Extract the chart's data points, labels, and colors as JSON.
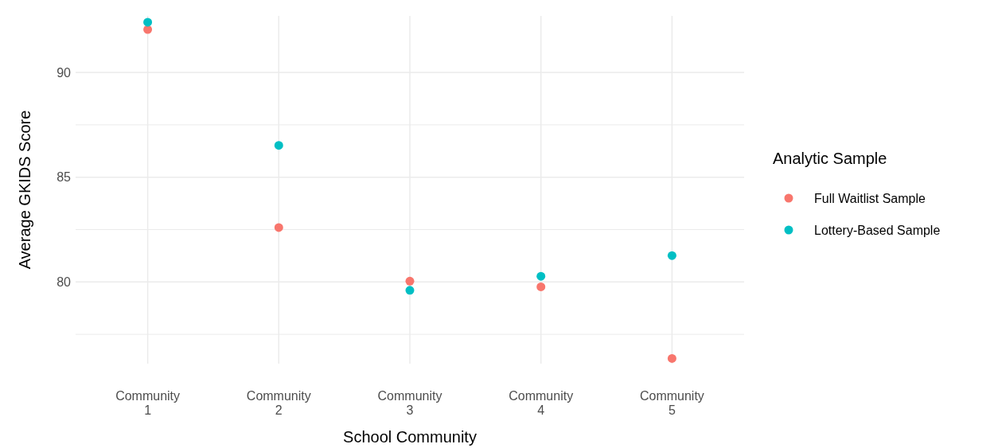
{
  "chart_data": {
    "type": "scatter",
    "xlabel": "School Community",
    "ylabel": "Average GKIDS Score",
    "legend_title": "Analytic Sample",
    "categories": [
      "Community 1",
      "Community 2",
      "Community 3",
      "Community 4",
      "Community 5"
    ],
    "series": [
      {
        "name": "Full Waitlist Sample",
        "color": "#f8766d",
        "values": [
          92.05,
          82.6,
          80.04,
          79.77,
          76.35
        ]
      },
      {
        "name": "Lottery-Based Sample",
        "color": "#00bfc4",
        "values": [
          92.4,
          86.52,
          79.6,
          80.27,
          81.26
        ]
      }
    ],
    "ylim": [
      76.1,
      92.7
    ],
    "yticks": [
      {
        "value": 77.5,
        "label": null
      },
      80,
      {
        "value": 82.5,
        "label": null
      },
      85,
      {
        "value": 87.5,
        "label": null
      },
      90
    ],
    "grid": true,
    "legend": "right",
    "marker": "circle"
  }
}
